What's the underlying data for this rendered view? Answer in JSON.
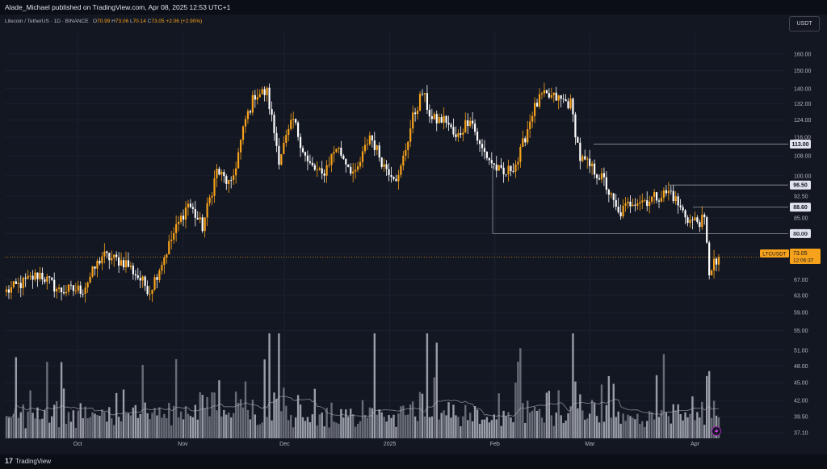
{
  "header": {
    "published_line": "Alade_Michael published on TradingView.com, Apr 08, 2025 12:53 UTC+1"
  },
  "legend": {
    "symbol_line": "Litecoin / TetherUS · 1D · BINANCE",
    "open_label": "O",
    "open": "70.99",
    "high_label": "H",
    "high": "73.06",
    "low_label": "L",
    "low": "70.14",
    "close_label": "C",
    "close": "73.05",
    "change": "+2.06 (+2.90%)"
  },
  "currency_button": "USDT",
  "footer": {
    "brand_mark": "17",
    "brand": "TradingView"
  },
  "colors": {
    "background": "#131722",
    "up": "#f7a21b",
    "down": "#ffffff",
    "volume_up": "#787b86",
    "volume_down": "#b2b5be",
    "price_label": "#f7a21b",
    "level_line": "#9598a1"
  },
  "chart_data": {
    "type": "candlestick",
    "symbol": "LTCUSDT",
    "current_price": "73.05",
    "countdown": "12:06:37",
    "y_scale": "log",
    "y_ticks": [
      "160.00",
      "150.00",
      "140.00",
      "132.00",
      "124.00",
      "116.00",
      "108.00",
      "100.00",
      "92.50",
      "85.00",
      "80.00",
      "74.00",
      "67.00",
      "63.00",
      "59.00",
      "55.00",
      "51.00",
      "48.00",
      "45.00",
      "42.00",
      "39.50",
      "37.10"
    ],
    "ylim": [
      36.3,
      174
    ],
    "x_ticks": [
      "Oct",
      "Nov",
      "Dec",
      "2025",
      "Feb",
      "Mar",
      "Apr"
    ],
    "levels": [
      {
        "value": 113.0,
        "label": "113.00"
      },
      {
        "value": 96.5,
        "label": "96.50"
      },
      {
        "value": 88.6,
        "label": "88.60"
      },
      {
        "value": 80.0,
        "label": "80.00"
      }
    ],
    "anchors": [
      [
        0,
        64.0
      ],
      [
        14,
        68.5
      ],
      [
        22,
        64.2
      ],
      [
        32,
        64.5
      ],
      [
        40,
        73.5
      ],
      [
        50,
        71.5
      ],
      [
        60,
        64.2
      ],
      [
        70,
        80.0
      ],
      [
        76,
        90.0
      ],
      [
        82,
        82.0
      ],
      [
        88,
        102.0
      ],
      [
        94,
        96.0
      ],
      [
        100,
        124.0
      ],
      [
        104,
        137.0
      ],
      [
        109,
        138.0
      ],
      [
        114,
        107.0
      ],
      [
        120,
        124.0
      ],
      [
        126,
        105.0
      ],
      [
        132,
        100.0
      ],
      [
        138,
        112.0
      ],
      [
        146,
        100.0
      ],
      [
        152,
        117.0
      ],
      [
        158,
        104.0
      ],
      [
        164,
        99.0
      ],
      [
        170,
        125.0
      ],
      [
        174,
        138.0
      ],
      [
        178,
        124.0
      ],
      [
        184,
        124.0
      ],
      [
        188,
        115.0
      ],
      [
        194,
        126.0
      ],
      [
        198,
        112.0
      ],
      [
        204,
        104.0
      ],
      [
        208,
        100.0
      ],
      [
        214,
        106.0
      ],
      [
        220,
        128.0
      ],
      [
        224,
        136.0
      ],
      [
        230,
        135.0
      ],
      [
        236,
        132.0
      ],
      [
        240,
        107.0
      ],
      [
        246,
        102.0
      ],
      [
        250,
        98.0
      ],
      [
        256,
        86.0
      ],
      [
        262,
        91.0
      ],
      [
        268,
        91.0
      ],
      [
        274,
        93.0
      ],
      [
        278,
        94.0
      ],
      [
        282,
        88.0
      ],
      [
        286,
        84.0
      ],
      [
        292,
        84.0
      ],
      [
        294,
        69.0
      ],
      [
        296,
        72.0
      ],
      [
        298,
        73.05
      ]
    ],
    "candle_count": 299,
    "volume_visible": true
  }
}
